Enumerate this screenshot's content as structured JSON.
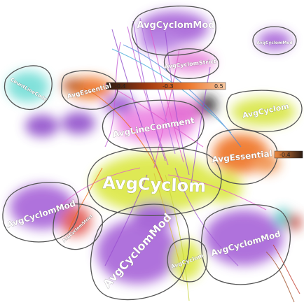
{
  "colors": {
    "purple": "#9a4fd1",
    "yellow": "#d9e637",
    "pink": "#e85bd0",
    "orange": "#ee6a16",
    "cyan": "#5bd6cf",
    "red": "#d8403a",
    "dark": "#222222",
    "outline": "#555555"
  },
  "clusters": [
    {
      "id": "avgcyclommod-top",
      "label": "AvgCyclomMod",
      "color": "purple"
    },
    {
      "id": "avgcyclommod-small",
      "label": "AvgCyclomMod",
      "color": "purple"
    },
    {
      "id": "avgcyclomstrict-top",
      "label": "AvgCyclomStrict",
      "color": "pink"
    },
    {
      "id": "countlinecode",
      "label": "CountLineCode",
      "color": "cyan"
    },
    {
      "id": "avgessential-left",
      "label": "AvgEssential",
      "color": "orange"
    },
    {
      "id": "avgcyclom-right",
      "label": "AvgCyclom",
      "color": "yellow"
    },
    {
      "id": "avglinecomment",
      "label": "AvgLineComment",
      "color": "pink"
    },
    {
      "id": "avgessential-right",
      "label": "AvgEssential",
      "color": "orange"
    },
    {
      "id": "avgcyclom-center",
      "label": "AvgCyclom",
      "color": "yellow"
    },
    {
      "id": "avgcyclommod-left",
      "label": "AvgCyclomMod",
      "color": "purple"
    },
    {
      "id": "avgcyclomstrict-left",
      "label": "AvgCyclomStrict",
      "color": "red"
    },
    {
      "id": "avgcyclommod-bottom",
      "label": "AvgCyclomMod",
      "color": "purple"
    },
    {
      "id": "avgcyclom-bottom",
      "label": "AvgCyclom",
      "color": "yellow"
    },
    {
      "id": "avgcyclommod-right",
      "label": "AvgCyclomMod",
      "color": "purple"
    }
  ],
  "scales": [
    {
      "id": "scale-top",
      "ticks": [
        "-0.4",
        "-0.3",
        "0.5"
      ]
    },
    {
      "id": "scale-right",
      "ticks": [
        "-0.4"
      ]
    }
  ]
}
